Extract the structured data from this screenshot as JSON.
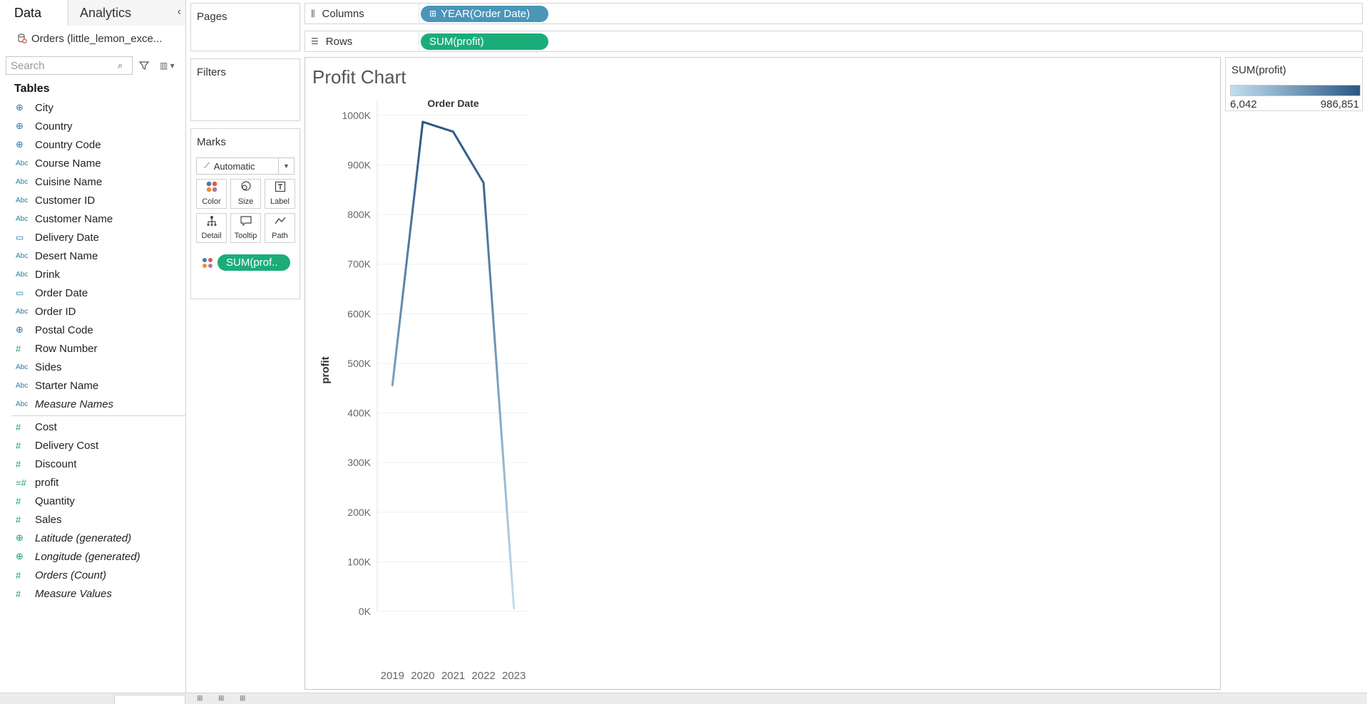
{
  "data_pane": {
    "tabs": [
      {
        "label": "Data"
      },
      {
        "label": "Analytics"
      }
    ],
    "collapse_icon": "chevron-left-icon",
    "datasource": "Orders (little_lemon_exce...",
    "search_placeholder": "Search",
    "tables_header": "Tables",
    "dimensions": [
      {
        "name": "City",
        "icon": "globe"
      },
      {
        "name": "Country",
        "icon": "globe"
      },
      {
        "name": "Country Code",
        "icon": "globe"
      },
      {
        "name": "Course Name",
        "icon": "abc"
      },
      {
        "name": "Cuisine Name",
        "icon": "abc"
      },
      {
        "name": "Customer ID",
        "icon": "abc"
      },
      {
        "name": "Customer Name",
        "icon": "abc"
      },
      {
        "name": "Delivery Date",
        "icon": "calendar"
      },
      {
        "name": "Desert Name",
        "icon": "abc"
      },
      {
        "name": "Drink",
        "icon": "abc"
      },
      {
        "name": "Order Date",
        "icon": "calendar"
      },
      {
        "name": "Order ID",
        "icon": "abc"
      },
      {
        "name": "Postal Code",
        "icon": "globe"
      },
      {
        "name": "Row Number",
        "icon": "hash"
      },
      {
        "name": "Sides",
        "icon": "abc"
      },
      {
        "name": "Starter Name",
        "icon": "abc"
      },
      {
        "name": "Measure Names",
        "icon": "abc",
        "italic": true
      }
    ],
    "measures": [
      {
        "name": "Cost",
        "icon": "hash"
      },
      {
        "name": "Delivery Cost",
        "icon": "hash"
      },
      {
        "name": "Discount",
        "icon": "hash"
      },
      {
        "name": "profit",
        "icon": "calc-hash"
      },
      {
        "name": "Quantity",
        "icon": "hash"
      },
      {
        "name": "Sales",
        "icon": "hash"
      },
      {
        "name": "Latitude (generated)",
        "icon": "globe",
        "italic": true
      },
      {
        "name": "Longitude (generated)",
        "icon": "globe",
        "italic": true
      },
      {
        "name": "Orders (Count)",
        "icon": "hash",
        "italic": true
      },
      {
        "name": "Measure Values",
        "icon": "hash",
        "italic": true
      }
    ]
  },
  "cards": {
    "pages": "Pages",
    "filters": "Filters",
    "marks": "Marks",
    "mark_type": "Automatic",
    "mark_buttons": [
      {
        "label": "Color",
        "icon": "color-icon"
      },
      {
        "label": "Size",
        "icon": "size-icon"
      },
      {
        "label": "Label",
        "icon": "label-icon"
      },
      {
        "label": "Detail",
        "icon": "detail-icon"
      },
      {
        "label": "Tooltip",
        "icon": "tooltip-icon"
      },
      {
        "label": "Path",
        "icon": "path-icon"
      }
    ],
    "marks_pill": "SUM(prof.."
  },
  "shelves": {
    "columns_label": "Columns",
    "columns_pill": "YEAR(Order Date)",
    "rows_label": "Rows",
    "rows_pill": "SUM(profit)"
  },
  "legend": {
    "title": "SUM(profit)",
    "min": "6,042",
    "max": "986,851",
    "color_low": "#c2dff0",
    "color_high": "#2a5783"
  },
  "colors": {
    "measure_pill": "#1aad7a",
    "dimension_pill": "#4a96b9"
  },
  "chart_data": {
    "type": "line",
    "title": "Profit Chart",
    "xlabel": "Order Date",
    "ylabel": "profit",
    "categories": [
      "2019",
      "2020",
      "2021",
      "2022",
      "2023"
    ],
    "series": [
      {
        "name": "SUM(profit)",
        "values": [
          456000,
          986851,
          967000,
          864000,
          6042
        ]
      }
    ],
    "ylim": [
      0,
      1030000
    ],
    "yticks": [
      0,
      100000,
      200000,
      300000,
      400000,
      500000,
      600000,
      700000,
      800000,
      900000,
      1000000
    ],
    "ytick_labels": [
      "0K",
      "100K",
      "200K",
      "300K",
      "400K",
      "500K",
      "600K",
      "700K",
      "800K",
      "900K",
      "1000K"
    ],
    "grid": true,
    "color_by_value": true
  }
}
